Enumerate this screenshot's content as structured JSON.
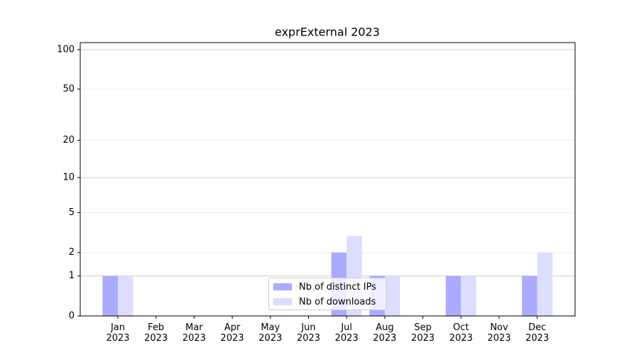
{
  "chart_data": {
    "type": "bar",
    "title": "exprExternal 2023",
    "categories": [
      "Jan 2023",
      "Feb 2023",
      "Mar 2023",
      "Apr 2023",
      "May 2023",
      "Jun 2023",
      "Jul 2023",
      "Aug 2023",
      "Sep 2023",
      "Oct 2023",
      "Nov 2023",
      "Dec 2023"
    ],
    "series": [
      {
        "name": "Nb of distinct IPs",
        "color": "#aaaaff",
        "values": [
          1,
          0,
          0,
          0,
          0,
          0,
          2,
          1,
          0,
          1,
          0,
          1
        ]
      },
      {
        "name": "Nb of downloads",
        "color": "#ddddff",
        "values": [
          1,
          0,
          0,
          0,
          0,
          0,
          3,
          1,
          0,
          1,
          0,
          2
        ]
      }
    ],
    "yscale": "log1p",
    "ylim": [
      0,
      113
    ],
    "yticks": [
      0,
      1,
      2,
      5,
      10,
      20,
      50,
      100
    ],
    "grid": true,
    "legend": "bottom center"
  }
}
